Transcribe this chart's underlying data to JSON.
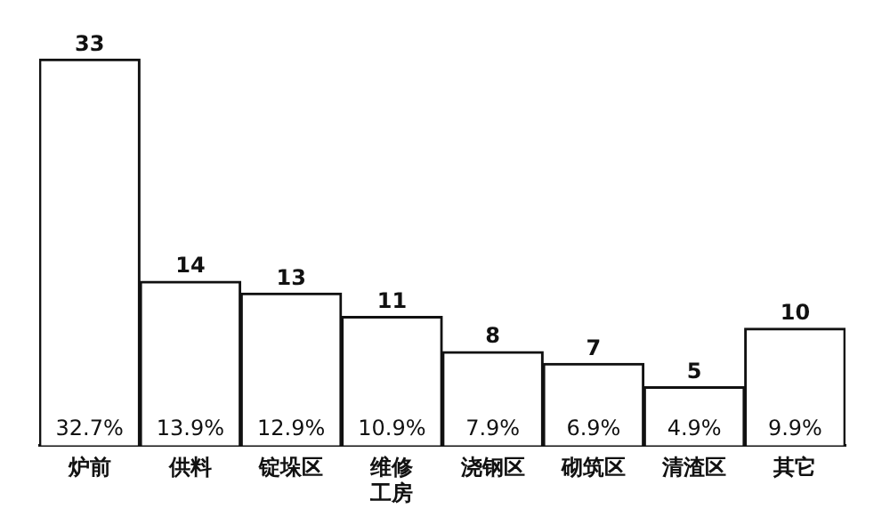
{
  "chart_data": {
    "type": "bar",
    "categories": [
      "炉前",
      "供料",
      "锭垛区",
      "维修工房",
      "浇钢区",
      "砌筑区",
      "清渣区",
      "其它"
    ],
    "values": [
      33,
      14,
      13,
      11,
      8,
      7,
      5,
      10
    ],
    "color": "#ffffff",
    "data_labels": true,
    "legend": false,
    "grid": false,
    "tick_labels": "x",
    "annotations": [
      "32.7%",
      "13.9%",
      "12.9%",
      "10.9%",
      "7.9%",
      "6.9%",
      "4.9%",
      "9.9%"
    ]
  }
}
